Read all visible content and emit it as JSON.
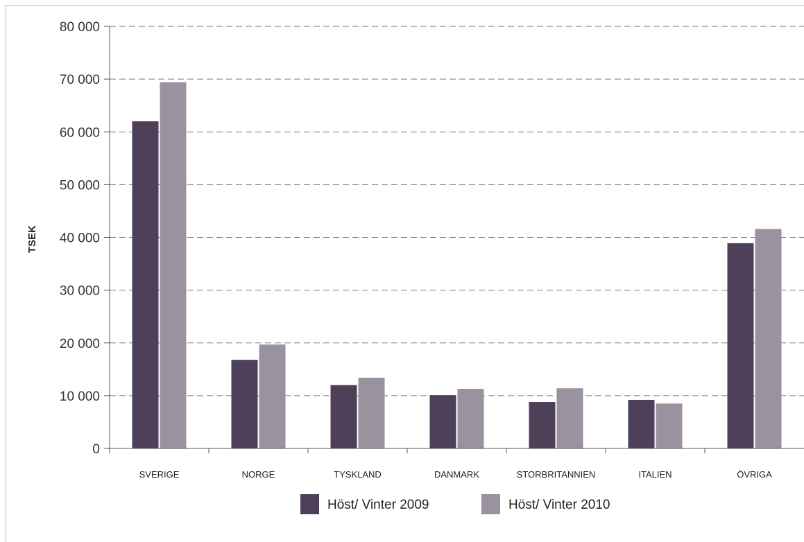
{
  "chart_data": {
    "type": "bar",
    "title": "",
    "xlabel": "",
    "ylabel": "TSEK",
    "ylim": [
      0,
      80000
    ],
    "yticks": [
      0,
      10000,
      20000,
      30000,
      40000,
      50000,
      60000,
      70000,
      80000
    ],
    "ytick_labels": [
      "0",
      "10 000",
      "20 000",
      "30 000",
      "40 000",
      "50 000",
      "60 000",
      "70 000",
      "80 000"
    ],
    "grid": true,
    "legend_position": "bottom",
    "categories": [
      "SVERIGE",
      "NORGE",
      "TYSKLAND",
      "DANMARK",
      "STORBRITANNIEN",
      "ITALIEN",
      "ÖVRIGA"
    ],
    "series": [
      {
        "name": "Höst/ Vinter 2009",
        "color": "#4e4058",
        "values": [
          62000,
          16800,
          12000,
          10100,
          8800,
          9200,
          38900
        ]
      },
      {
        "name": "Höst/ Vinter 2010",
        "color": "#9a929e",
        "values": [
          69400,
          19700,
          13400,
          11300,
          11400,
          8500,
          41600
        ]
      }
    ]
  }
}
